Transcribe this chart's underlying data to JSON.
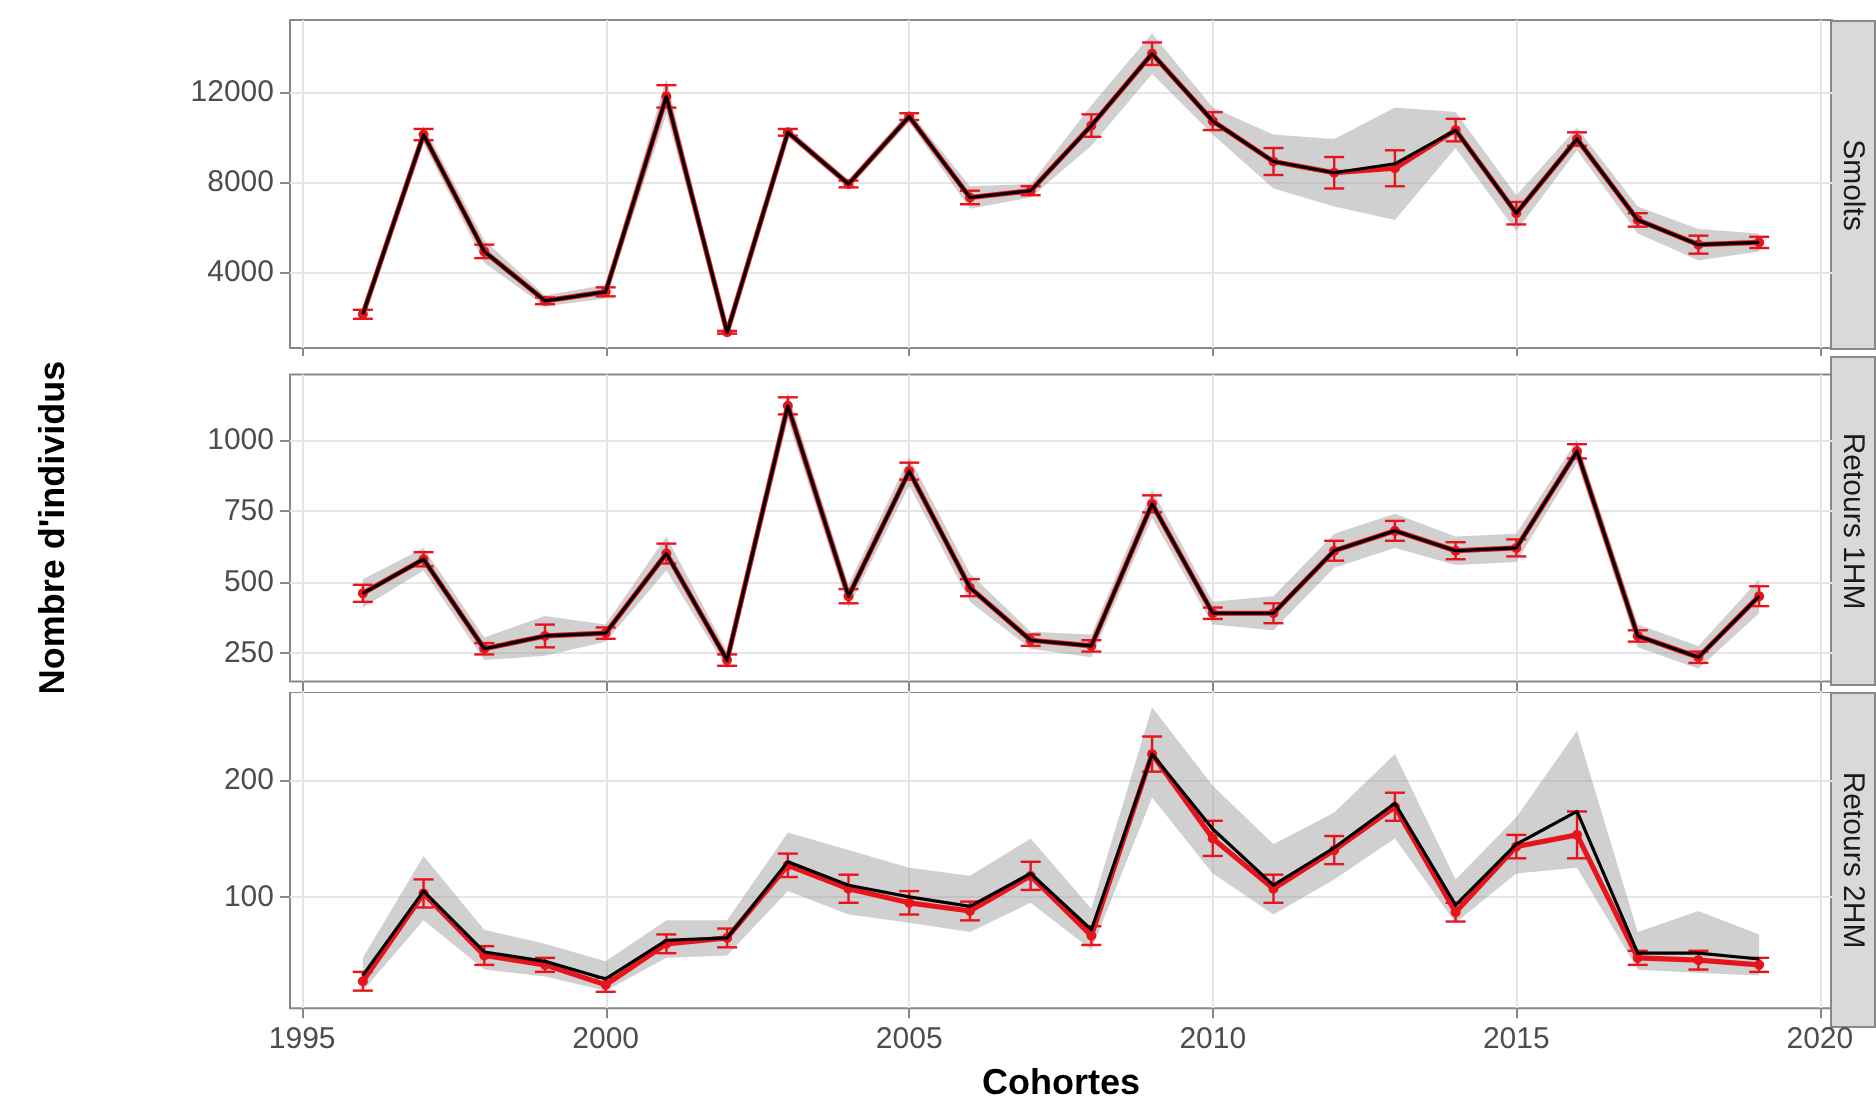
{
  "chart_data": [
    {
      "type": "line",
      "title": "Smolts",
      "x": [
        1996,
        1997,
        1998,
        1999,
        2000,
        2001,
        2002,
        2003,
        2004,
        2005,
        2006,
        2007,
        2008,
        2009,
        2010,
        2011,
        2012,
        2013,
        2014,
        2015,
        2016,
        2017,
        2018,
        2019
      ],
      "xlim": [
        1994.8,
        2020.2
      ],
      "xticks": [
        1995,
        2000,
        2005,
        2010,
        2015,
        2020
      ],
      "ylim": [
        600,
        15200
      ],
      "yticks": [
        4000,
        8000,
        12000
      ],
      "grid": true,
      "tick_labels": "y",
      "series": [
        {
          "color": "#000000",
          "marker": "none",
          "values": [
            2100,
            10100,
            4900,
            2700,
            3100,
            11800,
            1300,
            10200,
            7900,
            10900,
            7300,
            7600,
            10500,
            13700,
            10700,
            8900,
            8400,
            8800,
            10300,
            6600,
            9900,
            6300,
            5200,
            5300
          ],
          "lower": [
            1800,
            9700,
            4400,
            2450,
            2800,
            11000,
            1200,
            10000,
            7700,
            10650,
            6800,
            7300,
            9600,
            12800,
            10100,
            7700,
            6900,
            6300,
            9500,
            5800,
            9400,
            5700,
            4500,
            4900
          ],
          "upper": [
            2400,
            10500,
            5400,
            2950,
            3400,
            12600,
            1400,
            10400,
            8100,
            11150,
            7800,
            7900,
            11400,
            14600,
            11300,
            10100,
            9900,
            11300,
            11100,
            7400,
            10400,
            6900,
            5900,
            5700
          ]
        },
        {
          "color": "#e8141c",
          "marker": "circle",
          "values": [
            2100,
            10100,
            4900,
            2700,
            3100,
            11800,
            1300,
            10200,
            7900,
            10900,
            7300,
            7600,
            10500,
            13700,
            10700,
            8900,
            8400,
            8600,
            10300,
            6600,
            9900,
            6300,
            5200,
            5300
          ],
          "errors": [
            200,
            250,
            300,
            150,
            200,
            500,
            60,
            150,
            150,
            150,
            300,
            200,
            500,
            500,
            400,
            600,
            700,
            800,
            500,
            500,
            300,
            300,
            400,
            250
          ]
        }
      ]
    },
    {
      "type": "line",
      "title": "Retours 1HM",
      "ylabel": "Nombre d'individus",
      "x": [
        1996,
        1997,
        1998,
        1999,
        2000,
        2001,
        2002,
        2003,
        2004,
        2005,
        2006,
        2007,
        2008,
        2009,
        2010,
        2011,
        2012,
        2013,
        2014,
        2015,
        2016,
        2017,
        2018,
        2019
      ],
      "xlim": [
        1994.8,
        2020.2
      ],
      "xticks": [
        1995,
        2000,
        2005,
        2010,
        2015,
        2020
      ],
      "ylim": [
        150,
        1230
      ],
      "yticks": [
        250,
        500,
        750,
        1000
      ],
      "grid": true,
      "tick_labels": "y",
      "series": [
        {
          "color": "#000000",
          "marker": "none",
          "values": [
            460,
            580,
            265,
            310,
            320,
            600,
            225,
            1120,
            450,
            890,
            480,
            295,
            275,
            775,
            390,
            390,
            610,
            680,
            610,
            620,
            960,
            310,
            235,
            450
          ],
          "lower": [
            410,
            540,
            225,
            240,
            290,
            540,
            195,
            1070,
            410,
            840,
            430,
            265,
            235,
            725,
            350,
            330,
            550,
            620,
            560,
            570,
            920,
            270,
            195,
            390
          ],
          "upper": [
            510,
            620,
            305,
            380,
            350,
            660,
            255,
            1170,
            490,
            940,
            530,
            325,
            315,
            825,
            430,
            450,
            670,
            740,
            660,
            670,
            1000,
            350,
            275,
            510
          ]
        },
        {
          "color": "#e8141c",
          "marker": "circle",
          "values": [
            460,
            580,
            265,
            310,
            320,
            600,
            225,
            1120,
            450,
            890,
            480,
            295,
            275,
            775,
            390,
            390,
            610,
            680,
            610,
            620,
            960,
            310,
            235,
            450
          ],
          "errors": [
            30,
            25,
            20,
            40,
            20,
            35,
            20,
            30,
            25,
            30,
            30,
            20,
            20,
            30,
            20,
            35,
            35,
            35,
            30,
            30,
            25,
            20,
            20,
            35
          ]
        }
      ]
    },
    {
      "type": "line",
      "title": "Retours 2HM",
      "xlabel": "Cohortes",
      "x": [
        1996,
        1997,
        1998,
        1999,
        2000,
        2001,
        2002,
        2003,
        2004,
        2005,
        2006,
        2007,
        2008,
        2009,
        2010,
        2011,
        2012,
        2013,
        2014,
        2015,
        2016,
        2017,
        2018,
        2019
      ],
      "xlim": [
        1994.8,
        2020.2
      ],
      "xticks": [
        1995,
        2000,
        2005,
        2010,
        2015,
        2020
      ],
      "ylim": [
        5,
        275
      ],
      "yticks": [
        100,
        200
      ],
      "grid": true,
      "series": [
        {
          "color": "#000000",
          "marker": "none",
          "values": [
            33,
            105,
            53,
            45,
            30,
            63,
            65,
            130,
            110,
            100,
            92,
            120,
            72,
            222,
            158,
            110,
            142,
            180,
            93,
            145,
            173,
            52,
            52,
            47
          ],
          "lower": [
            20,
            80,
            38,
            32,
            20,
            48,
            50,
            105,
            85,
            78,
            70,
            95,
            55,
            185,
            120,
            85,
            115,
            150,
            78,
            120,
            125,
            38,
            35,
            33
          ],
          "upper": [
            48,
            135,
            72,
            60,
            45,
            80,
            80,
            155,
            140,
            125,
            118,
            150,
            90,
            262,
            195,
            145,
            172,
            222,
            115,
            168,
            242,
            70,
            88,
            68
          ]
        },
        {
          "color": "#e8141c",
          "marker": "circle",
          "values": [
            28,
            103,
            50,
            42,
            25,
            60,
            65,
            127,
            107,
            95,
            88,
            118,
            67,
            222,
            150,
            107,
            140,
            177,
            87,
            143,
            153,
            48,
            46,
            42
          ],
          "errors": [
            8,
            12,
            8,
            6,
            6,
            8,
            8,
            10,
            12,
            10,
            8,
            12,
            8,
            15,
            15,
            12,
            12,
            12,
            8,
            10,
            20,
            6,
            8,
            6
          ]
        }
      ]
    }
  ]
}
